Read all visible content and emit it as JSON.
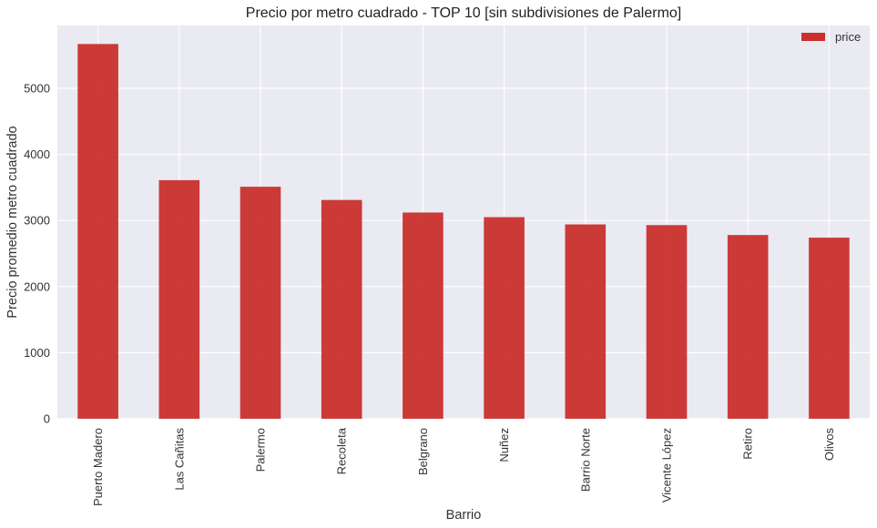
{
  "chart_data": {
    "type": "bar",
    "title": "Precio por metro cuadrado - TOP 10 [sin subdivisiones de Palermo]",
    "xlabel": "Barrio",
    "ylabel": "Precio promedio metro cuadrado",
    "categories": [
      "Puerto Madero",
      "Las Cañitas",
      "Palermo",
      "Recoleta",
      "Belgrano",
      "Nuñez",
      "Barrio Norte",
      "Vicente López",
      "Retiro",
      "Olivos"
    ],
    "series": [
      {
        "name": "price",
        "values": [
          5670,
          3610,
          3510,
          3310,
          3120,
          3050,
          2940,
          2930,
          2780,
          2740
        ]
      }
    ],
    "ylim": [
      0,
      5950
    ],
    "yticks": [
      0,
      1000,
      2000,
      3000,
      4000,
      5000
    ],
    "grid": true,
    "legend": "top-right",
    "colors": {
      "bar": "#c9302c",
      "plot_bg": "#eaeaf2",
      "grid": "#ffffff"
    }
  }
}
